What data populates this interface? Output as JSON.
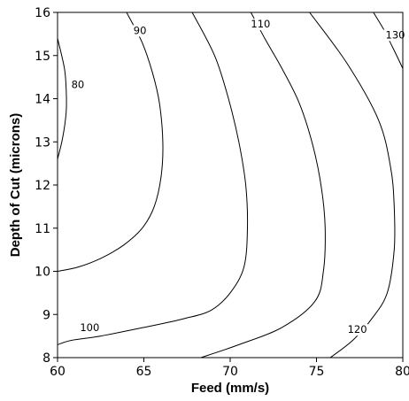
{
  "chart_data": {
    "type": "contour",
    "xlabel": "Feed (mm/s)",
    "ylabel": "Depth of Cut (microns)",
    "xlim": [
      60,
      80
    ],
    "ylim": [
      8,
      16
    ],
    "x_ticks": [
      60,
      65,
      70,
      75,
      80
    ],
    "y_ticks": [
      8,
      9,
      10,
      11,
      12,
      13,
      14,
      15,
      16
    ],
    "grid": false,
    "contours": [
      {
        "level": "80",
        "points": [
          [
            60.0,
            15.4
          ],
          [
            60.4,
            14.7
          ],
          [
            60.5,
            14.2
          ],
          [
            60.5,
            13.7
          ],
          [
            60.3,
            13.1
          ],
          [
            60.0,
            12.6
          ]
        ],
        "label_at": [
          60.8,
          14.25
        ]
      },
      {
        "level": "90",
        "points": [
          [
            64.0,
            16.0
          ],
          [
            64.9,
            15.3
          ],
          [
            65.5,
            14.6
          ],
          [
            65.9,
            13.9
          ],
          [
            66.1,
            13.0
          ],
          [
            66.0,
            12.2
          ],
          [
            65.6,
            11.5
          ],
          [
            64.9,
            11.0
          ],
          [
            63.8,
            10.6
          ],
          [
            62.5,
            10.3
          ],
          [
            61.2,
            10.1
          ],
          [
            60.0,
            10.0
          ]
        ],
        "label_at": [
          64.4,
          15.5
        ]
      },
      {
        "level": "100",
        "points": [
          [
            67.8,
            16.0
          ],
          [
            69.1,
            15.0
          ],
          [
            69.9,
            14.0
          ],
          [
            70.5,
            13.0
          ],
          [
            70.9,
            12.0
          ],
          [
            71.0,
            11.0
          ],
          [
            70.8,
            10.1
          ],
          [
            70.0,
            9.5
          ],
          [
            68.9,
            9.1
          ],
          [
            67.3,
            8.9
          ],
          [
            65.0,
            8.7
          ],
          [
            62.5,
            8.5
          ],
          [
            60.8,
            8.4
          ],
          [
            60.0,
            8.3
          ]
        ],
        "label_at": [
          61.3,
          8.62
        ]
      },
      {
        "level": "110",
        "points": [
          [
            71.2,
            16.0
          ],
          [
            72.0,
            15.4
          ],
          [
            73.0,
            14.7
          ],
          [
            74.0,
            13.9
          ],
          [
            74.8,
            12.9
          ],
          [
            75.3,
            11.9
          ],
          [
            75.5,
            11.0
          ],
          [
            75.4,
            10.0
          ],
          [
            74.9,
            9.3
          ],
          [
            73.0,
            8.7
          ],
          [
            70.5,
            8.3
          ],
          [
            68.3,
            8.0
          ]
        ],
        "label_at": [
          71.2,
          15.65
        ]
      },
      {
        "level": "120",
        "points": [
          [
            74.6,
            16.0
          ],
          [
            76.8,
            14.8
          ],
          [
            78.6,
            13.5
          ],
          [
            79.3,
            12.4
          ],
          [
            79.5,
            11.5
          ],
          [
            79.5,
            10.5
          ],
          [
            79.1,
            9.5
          ],
          [
            78.2,
            8.9
          ],
          [
            77.1,
            8.4
          ],
          [
            75.8,
            8.0
          ]
        ],
        "label_at": [
          76.8,
          8.57
        ]
      },
      {
        "level": "130",
        "points": [
          [
            78.3,
            16.0
          ],
          [
            78.9,
            15.6
          ],
          [
            79.4,
            15.2
          ],
          [
            80.0,
            14.7
          ]
        ],
        "label_at": [
          79.0,
          15.4
        ]
      }
    ]
  }
}
